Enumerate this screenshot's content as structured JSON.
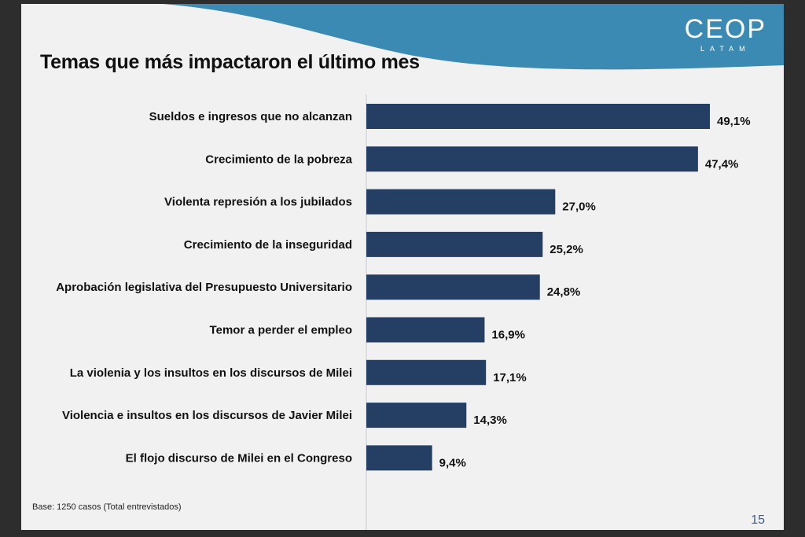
{
  "slide": {
    "title": "Temas que más impactaron el último mes",
    "logo": {
      "main": "CEOP",
      "sub": "LATAM"
    },
    "footnote": "Base:  1250 casos (Total entrevistados)",
    "page_number": "15",
    "colors": {
      "bar": "#243f63",
      "wave": "#3a8ab4",
      "background": "#f1f1f1"
    }
  },
  "chart_data": {
    "type": "bar",
    "orientation": "horizontal",
    "title": "Temas que más impactaron el último mes",
    "categories": [
      "Sueldos e ingresos que no alcanzan",
      "Crecimiento de la pobreza",
      "Violenta represión a los jubilados",
      "Crecimiento de la inseguridad",
      "Aprobación legislativa del Presupuesto Universitario",
      "Temor a perder el empleo",
      "La violenia y los insultos en los discursos de Milei",
      "Violencia e insultos en los discursos de Javier Milei",
      "El flojo discurso de Milei en el Congreso"
    ],
    "values": [
      49.1,
      47.4,
      27.0,
      25.2,
      24.8,
      16.9,
      17.1,
      14.3,
      9.4
    ],
    "labels": [
      "49,1%",
      "47,4%",
      "27,0%",
      "25,2%",
      "24,8%",
      "16,9%",
      "17,1%",
      "14,3%",
      "9,4%"
    ],
    "unit": "%",
    "xlim": [
      0,
      55
    ],
    "grid": false,
    "legend": "none"
  }
}
